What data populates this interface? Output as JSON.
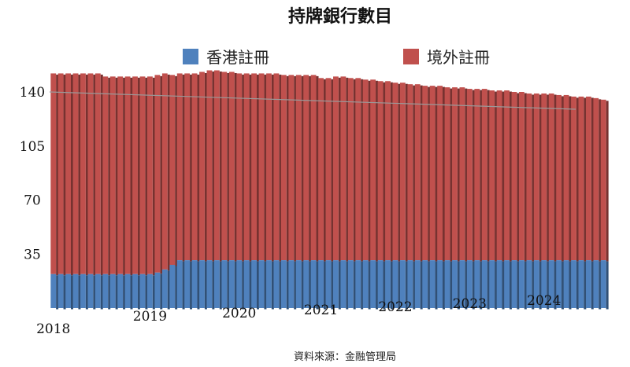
{
  "chart_data": {
    "type": "bar",
    "stacked": true,
    "title": "持牌銀行數目",
    "source": "資料來源：金融管理局",
    "legend_position": "top",
    "ylim": [
      0,
      140
    ],
    "y_ticks": [
      35,
      70,
      105,
      140
    ],
    "x_tick_labels": [
      "2018",
      "2019",
      "2020",
      "2021",
      "2022",
      "2023",
      "2024"
    ],
    "x_tick_index": [
      0,
      13,
      25,
      36,
      46,
      56,
      66
    ],
    "series": [
      {
        "name": "香港註冊",
        "color": "#4f81bd",
        "values": [
          22,
          22,
          22,
          22,
          22,
          22,
          22,
          22,
          22,
          22,
          22,
          22,
          22,
          22,
          23,
          25,
          28,
          31,
          31,
          31,
          31,
          31,
          31,
          31,
          31,
          31,
          31,
          31,
          31,
          31,
          31,
          31,
          31,
          31,
          31,
          31,
          31,
          31,
          31,
          31,
          31,
          31,
          31,
          31,
          31,
          31,
          31,
          31,
          31,
          31,
          31,
          31,
          31,
          31,
          31,
          31,
          31,
          31,
          31,
          31,
          31,
          31,
          31,
          31,
          31,
          31,
          31,
          31,
          31,
          31,
          31,
          31,
          31,
          31,
          31
        ]
      },
      {
        "name": "境外註冊",
        "color": "#c0504d",
        "values": [
          130,
          130,
          130,
          130,
          130,
          130,
          130,
          128,
          128,
          128,
          128,
          128,
          128,
          128,
          128,
          127,
          123,
          121,
          121,
          121,
          122,
          123,
          123,
          122,
          122,
          121,
          121,
          121,
          121,
          121,
          121,
          120,
          120,
          120,
          120,
          120,
          118,
          118,
          119,
          119,
          118,
          118,
          117,
          117,
          116,
          116,
          115,
          115,
          114,
          114,
          113,
          113,
          113,
          112,
          112,
          112,
          111,
          111,
          111,
          110,
          110,
          110,
          109,
          109,
          108,
          108,
          108,
          108,
          107,
          107,
          106,
          106,
          106,
          105,
          104
        ]
      }
    ]
  }
}
